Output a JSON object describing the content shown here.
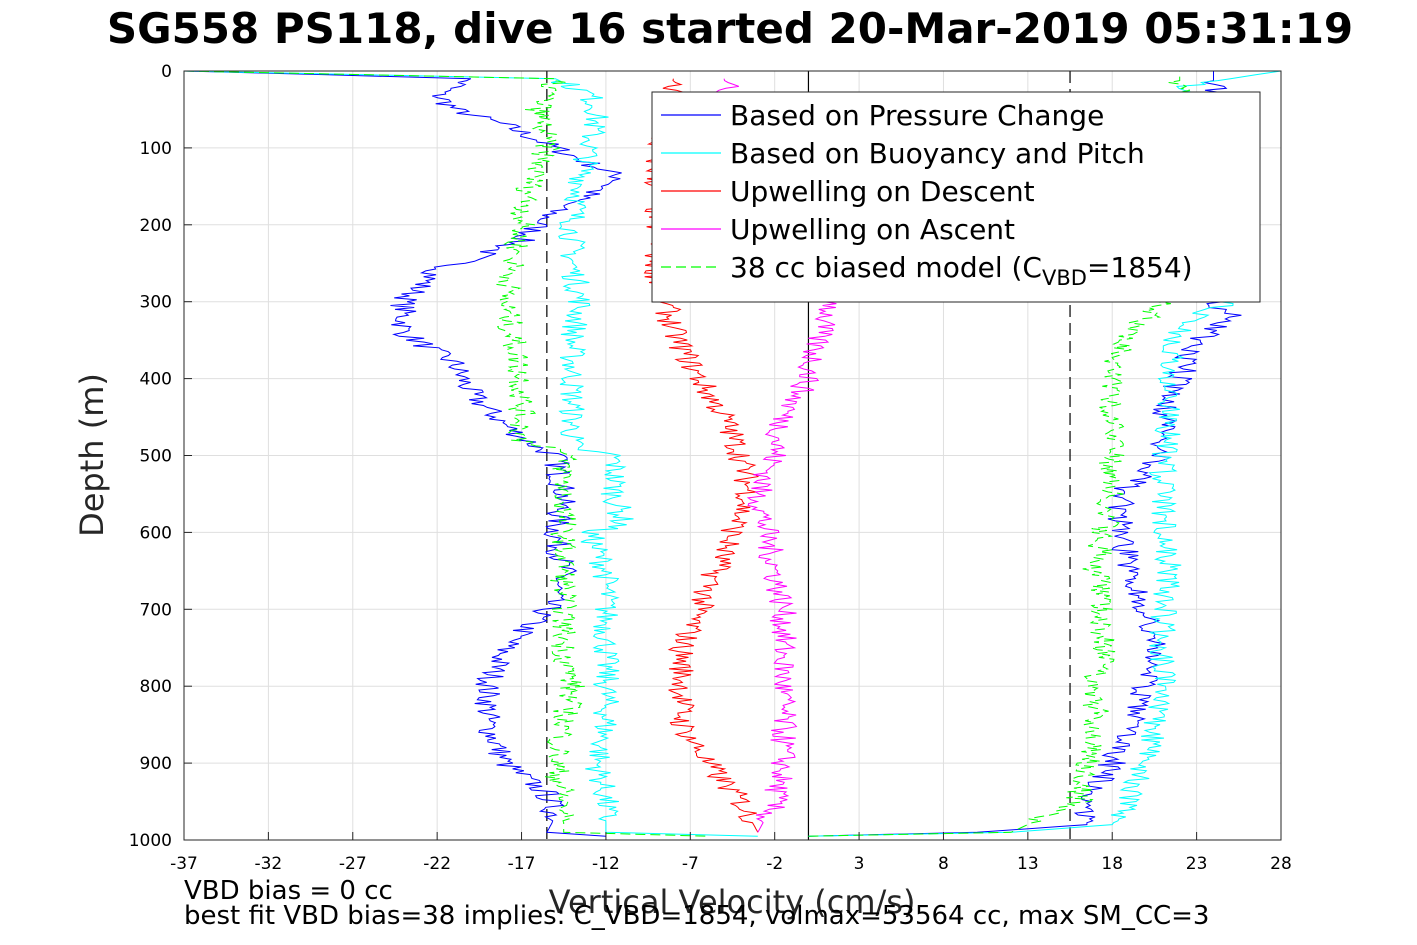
{
  "title": "SG558 PS118, dive 16 started 20-Mar-2019 05:31:19",
  "notes": {
    "vbd_bias": "VBD bias = 0 cc",
    "best_fit": "best fit VBD bias=38 implies: C_VBD=1854, volmax=53564 cc, max SM_CC=3"
  },
  "chart_data": {
    "type": "line",
    "xlabel": "Vertical Velocity (cm/s)",
    "ylabel": "Depth (m)",
    "xlim": [
      -37,
      28
    ],
    "ylim": [
      1000,
      0
    ],
    "y_reversed": true,
    "xticks": [
      -37,
      -32,
      -27,
      -22,
      -17,
      -12,
      -7,
      -2,
      3,
      8,
      13,
      18,
      23,
      28
    ],
    "yticks": [
      0,
      100,
      200,
      300,
      400,
      500,
      600,
      700,
      800,
      900,
      1000
    ],
    "grid": true,
    "legend_position": "top-right",
    "reference_lines": [
      {
        "style": "dashed",
        "color": "#000000",
        "x": -15.5
      },
      {
        "style": "solid",
        "color": "#000000",
        "x": 0
      },
      {
        "style": "dashed",
        "color": "#000000",
        "x": 15.5
      }
    ],
    "series": [
      {
        "name": "Based on Pressure Change",
        "color": "#0000ff",
        "style": "solid",
        "segments": [
          {
            "depth": [
              0,
              10,
              30,
              50,
              70,
              100,
              140,
              180,
              220,
              260,
              300,
              340,
              380,
              420,
              460,
              490,
              500,
              550,
              600,
              650,
              700,
              750,
              800,
              850,
              900,
              940,
              970,
              990,
              995
            ],
            "velocity": [
              -37,
              -20,
              -22,
              -21,
              -18,
              -15,
              -11,
              -15,
              -17,
              -22,
              -24,
              -24,
              -21,
              -20,
              -18,
              -16,
              -15,
              -14.5,
              -15,
              -14.5,
              -15.5,
              -18,
              -19,
              -19,
              -18,
              -15.5,
              -15,
              -15.5,
              -12
            ]
          },
          {
            "depth": [
              995,
              990,
              980,
              960,
              940,
              900,
              850,
              800,
              750,
              700,
              650,
              600,
              550,
              500,
              450,
              400,
              350,
              320,
              300,
              0
            ],
            "velocity": [
              0,
              10,
              16.5,
              16.5,
              17,
              18,
              19,
              20,
              20.5,
              20,
              19,
              18.5,
              18.5,
              21,
              21,
              22,
              23,
              25,
              24,
              24
            ]
          }
        ]
      },
      {
        "name": "Based on Buoyancy and Pitch",
        "color": "#00ffff",
        "style": "solid",
        "segments": [
          {
            "depth": [
              0,
              10,
              30,
              50,
              100,
              150,
              200,
              250,
              300,
              350,
              400,
              450,
              490,
              500,
              550,
              590,
              600,
              650,
              700,
              750,
              800,
              850,
              900,
              950,
              990,
              995
            ],
            "velocity": [
              -37,
              -15,
              -13,
              -12.5,
              -13,
              -13.5,
              -14,
              -14,
              -13.5,
              -14,
              -14,
              -14,
              -14,
              -11.5,
              -11.5,
              -11,
              -13,
              -12,
              -12,
              -12,
              -12,
              -12,
              -12.5,
              -12,
              -12,
              -3
            ]
          },
          {
            "depth": [
              995,
              990,
              980,
              950,
              900,
              850,
              800,
              750,
              700,
              650,
              600,
              550,
              500,
              450,
              400,
              350,
              320,
              300,
              200,
              150,
              100,
              50,
              20,
              0
            ],
            "velocity": [
              0,
              12,
              18,
              19,
              20,
              20.5,
              21,
              21,
              21,
              21.5,
              21,
              21,
              21,
              21.5,
              21.5,
              21.5,
              23,
              25,
              25,
              25,
              23,
              22.5,
              22,
              28
            ]
          }
        ]
      },
      {
        "name": "Upwelling on Descent",
        "color": "#ff0000",
        "style": "solid",
        "segments": [
          {
            "depth": [
              10,
              100,
              200,
              260,
              300,
              340,
              400,
              450,
              500,
              550,
              600,
              650,
              700,
              750,
              800,
              850,
              900,
              950,
              990
            ],
            "velocity": [
              -8,
              -9,
              -9,
              -9,
              -8.5,
              -8,
              -6.5,
              -5,
              -4,
              -3.5,
              -4.5,
              -5.5,
              -6.5,
              -7.5,
              -7.5,
              -7.5,
              -6,
              -4,
              -3
            ]
          }
        ]
      },
      {
        "name": "Upwelling on Ascent",
        "color": "#ff00ff",
        "style": "solid",
        "segments": [
          {
            "depth": [
              10,
              100,
              200,
              300,
              320,
              350,
              400,
              450,
              500,
              550,
              600,
              650,
              700,
              750,
              800,
              850,
              900,
              950,
              990
            ],
            "velocity": [
              -5,
              -4,
              -4,
              1.5,
              1,
              0.5,
              0,
              -1.5,
              -2,
              -3,
              -2.5,
              -2,
              -1.5,
              -1.5,
              -1.5,
              -1.5,
              -1.5,
              -2,
              -3
            ]
          }
        ]
      },
      {
        "name": "38 cc biased model (C_VBD=1854)",
        "color": "#00ff00",
        "style": "dashed",
        "segments": [
          {
            "depth": [
              0,
              10,
              50,
              100,
              150,
              200,
              250,
              300,
              350,
              400,
              450,
              480,
              490,
              500,
              550,
              600,
              650,
              700,
              750,
              800,
              850,
              900,
              950,
              990,
              995
            ],
            "velocity": [
              -37,
              -15,
              -16,
              -15.5,
              -16.5,
              -17,
              -17.5,
              -18,
              -17.5,
              -17,
              -17,
              -17,
              -15,
              -14.5,
              -14.5,
              -14.5,
              -14.5,
              -14.5,
              -14.5,
              -14,
              -14.5,
              -15,
              -14.5,
              -14.5,
              -6
            ]
          },
          {
            "depth": [
              995,
              990,
              950,
              900,
              850,
              800,
              750,
              700,
              650,
              600,
              550,
              500,
              450,
              400,
              350,
              320,
              300,
              200,
              100,
              50,
              0
            ],
            "velocity": [
              0,
              12,
              16,
              16.5,
              17,
              17,
              17.5,
              17.5,
              17,
              17.5,
              18,
              18,
              18,
              18,
              18.5,
              20,
              21,
              22,
              22.5,
              22,
              22
            ]
          }
        ]
      }
    ],
    "legend": [
      {
        "label": "Based on Pressure Change",
        "color": "#0000ff",
        "style": "solid"
      },
      {
        "label": "Based on Buoyancy and Pitch",
        "color": "#00ffff",
        "style": "solid"
      },
      {
        "label": "Upwelling on Descent",
        "color": "#ff0000",
        "style": "solid"
      },
      {
        "label": "Upwelling on Ascent",
        "color": "#ff00ff",
        "style": "solid"
      },
      {
        "label": "38 cc biased model (C",
        "sub": "VBD",
        "suffix": "=1854)",
        "color": "#00ff00",
        "style": "dashed"
      }
    ]
  }
}
